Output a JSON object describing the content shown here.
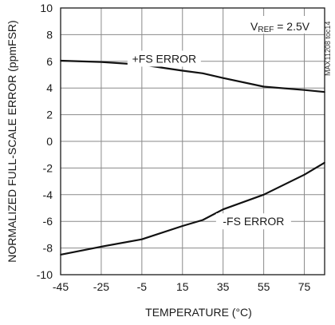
{
  "chart_data": {
    "type": "line",
    "title": "",
    "xlabel": "TEMPERATURE (°C)",
    "ylabel": "NORMALIZED FULL-SCALE ERROR (ppmFSR)",
    "xlim": [
      -45,
      85
    ],
    "ylim": [
      -10,
      10
    ],
    "xticks": [
      -45,
      -25,
      -5,
      15,
      35,
      55,
      75
    ],
    "yticks": [
      -10,
      -8,
      -6,
      -4,
      -2,
      0,
      2,
      4,
      6,
      8,
      10
    ],
    "grid": true,
    "series": [
      {
        "name": "+FS ERROR",
        "x": [
          -45,
          -25,
          -5,
          15,
          25,
          35,
          55,
          75,
          85
        ],
        "y": [
          6.05,
          5.95,
          5.75,
          5.3,
          5.1,
          4.75,
          4.1,
          3.85,
          3.7
        ]
      },
      {
        "name": "-FS ERROR",
        "x": [
          -45,
          -25,
          -5,
          15,
          25,
          35,
          55,
          75,
          85
        ],
        "y": [
          -8.5,
          -7.9,
          -7.35,
          -6.35,
          -5.9,
          -5.1,
          -4.0,
          -2.5,
          -1.6
        ]
      }
    ],
    "annotations": {
      "vref_prefix": "V",
      "vref_sub": "REF",
      "vref_suffix": " = 2.5V",
      "code": "MAX11208 toc14"
    }
  }
}
